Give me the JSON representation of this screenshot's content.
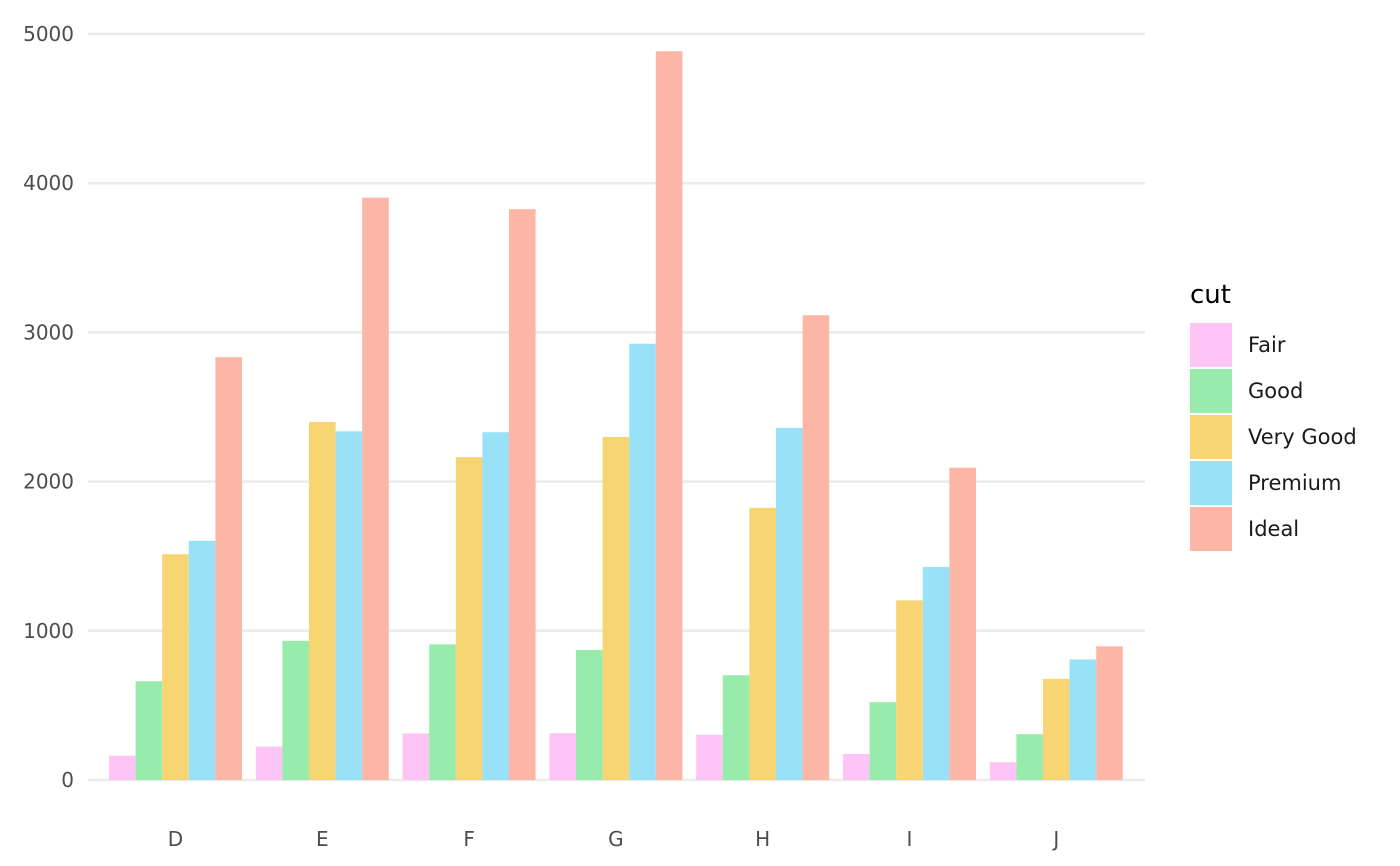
{
  "chart_data": {
    "type": "bar",
    "title": "",
    "xlabel": "",
    "ylabel": "",
    "categories": [
      "D",
      "E",
      "F",
      "G",
      "H",
      "I",
      "J"
    ],
    "ylim": [
      0,
      5000
    ],
    "yticks": [
      0,
      1000,
      2000,
      3000,
      4000,
      5000
    ],
    "grid": true,
    "legend": {
      "title": "cut",
      "placement": "right"
    },
    "series": [
      {
        "name": "Fair",
        "color": "#fcc5f5",
        "values": [
          163,
          224,
          312,
          314,
          303,
          175,
          119
        ]
      },
      {
        "name": "Good",
        "color": "#97ebab",
        "values": [
          662,
          933,
          909,
          871,
          702,
          522,
          307
        ]
      },
      {
        "name": "Very Good",
        "color": "#f7d572",
        "values": [
          1513,
          2400,
          2164,
          2299,
          1824,
          1204,
          678
        ]
      },
      {
        "name": "Premium",
        "color": "#99e1f7",
        "values": [
          1603,
          2337,
          2331,
          2924,
          2360,
          1428,
          808
        ]
      },
      {
        "name": "Ideal",
        "color": "#fcb6a5",
        "values": [
          2834,
          3903,
          3826,
          4884,
          3115,
          2093,
          896
        ]
      }
    ]
  }
}
